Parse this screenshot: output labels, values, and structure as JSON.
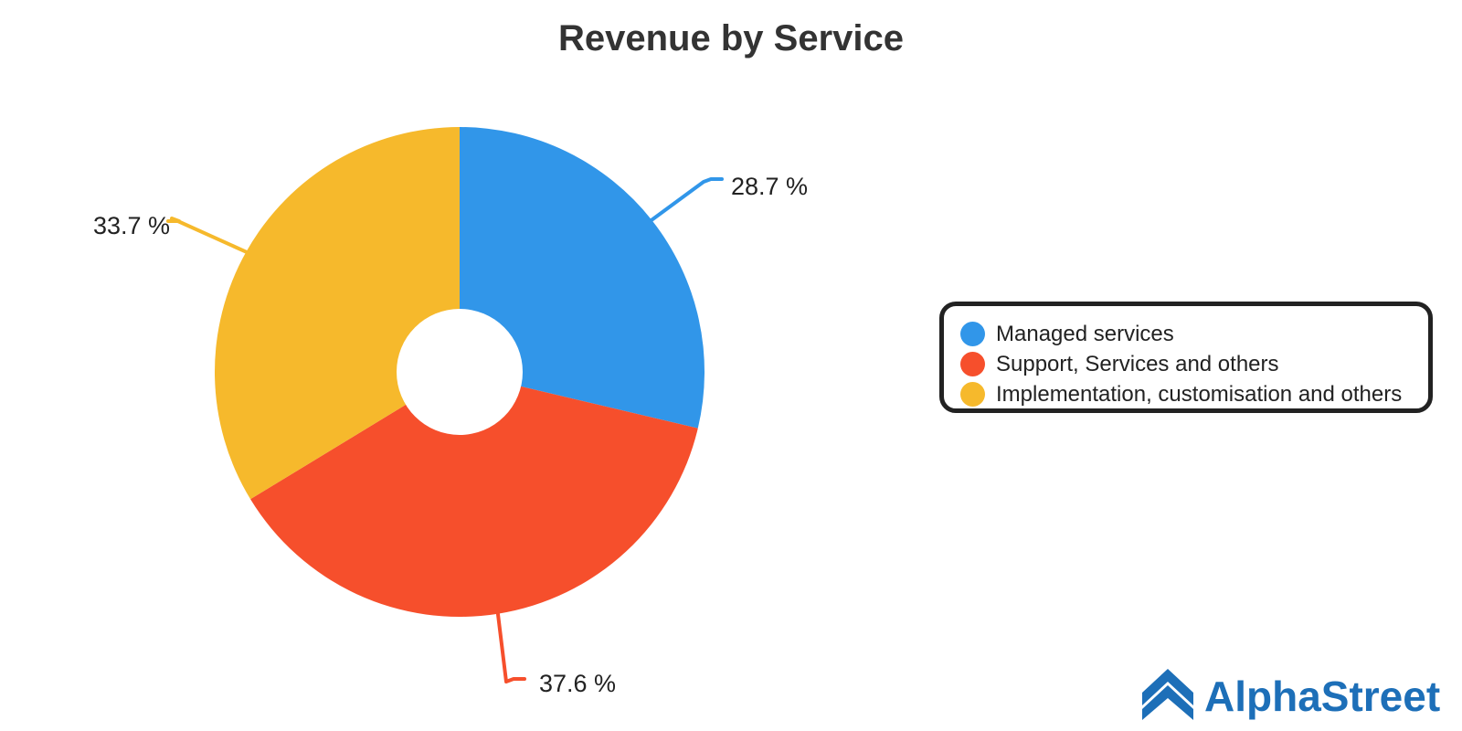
{
  "chart_data": {
    "type": "pie",
    "title": "Revenue by Service",
    "donut": true,
    "slices": [
      {
        "label": "Managed services",
        "value": 28.7,
        "display": "28.7 %",
        "color": "#3196e9"
      },
      {
        "label": "Support, Services and others",
        "value": 37.6,
        "display": "37.6 %",
        "color": "#f64f2c"
      },
      {
        "label": "Implementation, customisation and others",
        "value": 33.7,
        "display": "33.7 %",
        "color": "#f6b92c"
      }
    ],
    "legend_placement": "right"
  },
  "logo": {
    "text": "AlphaStreet",
    "color": "#1d6fb8"
  }
}
